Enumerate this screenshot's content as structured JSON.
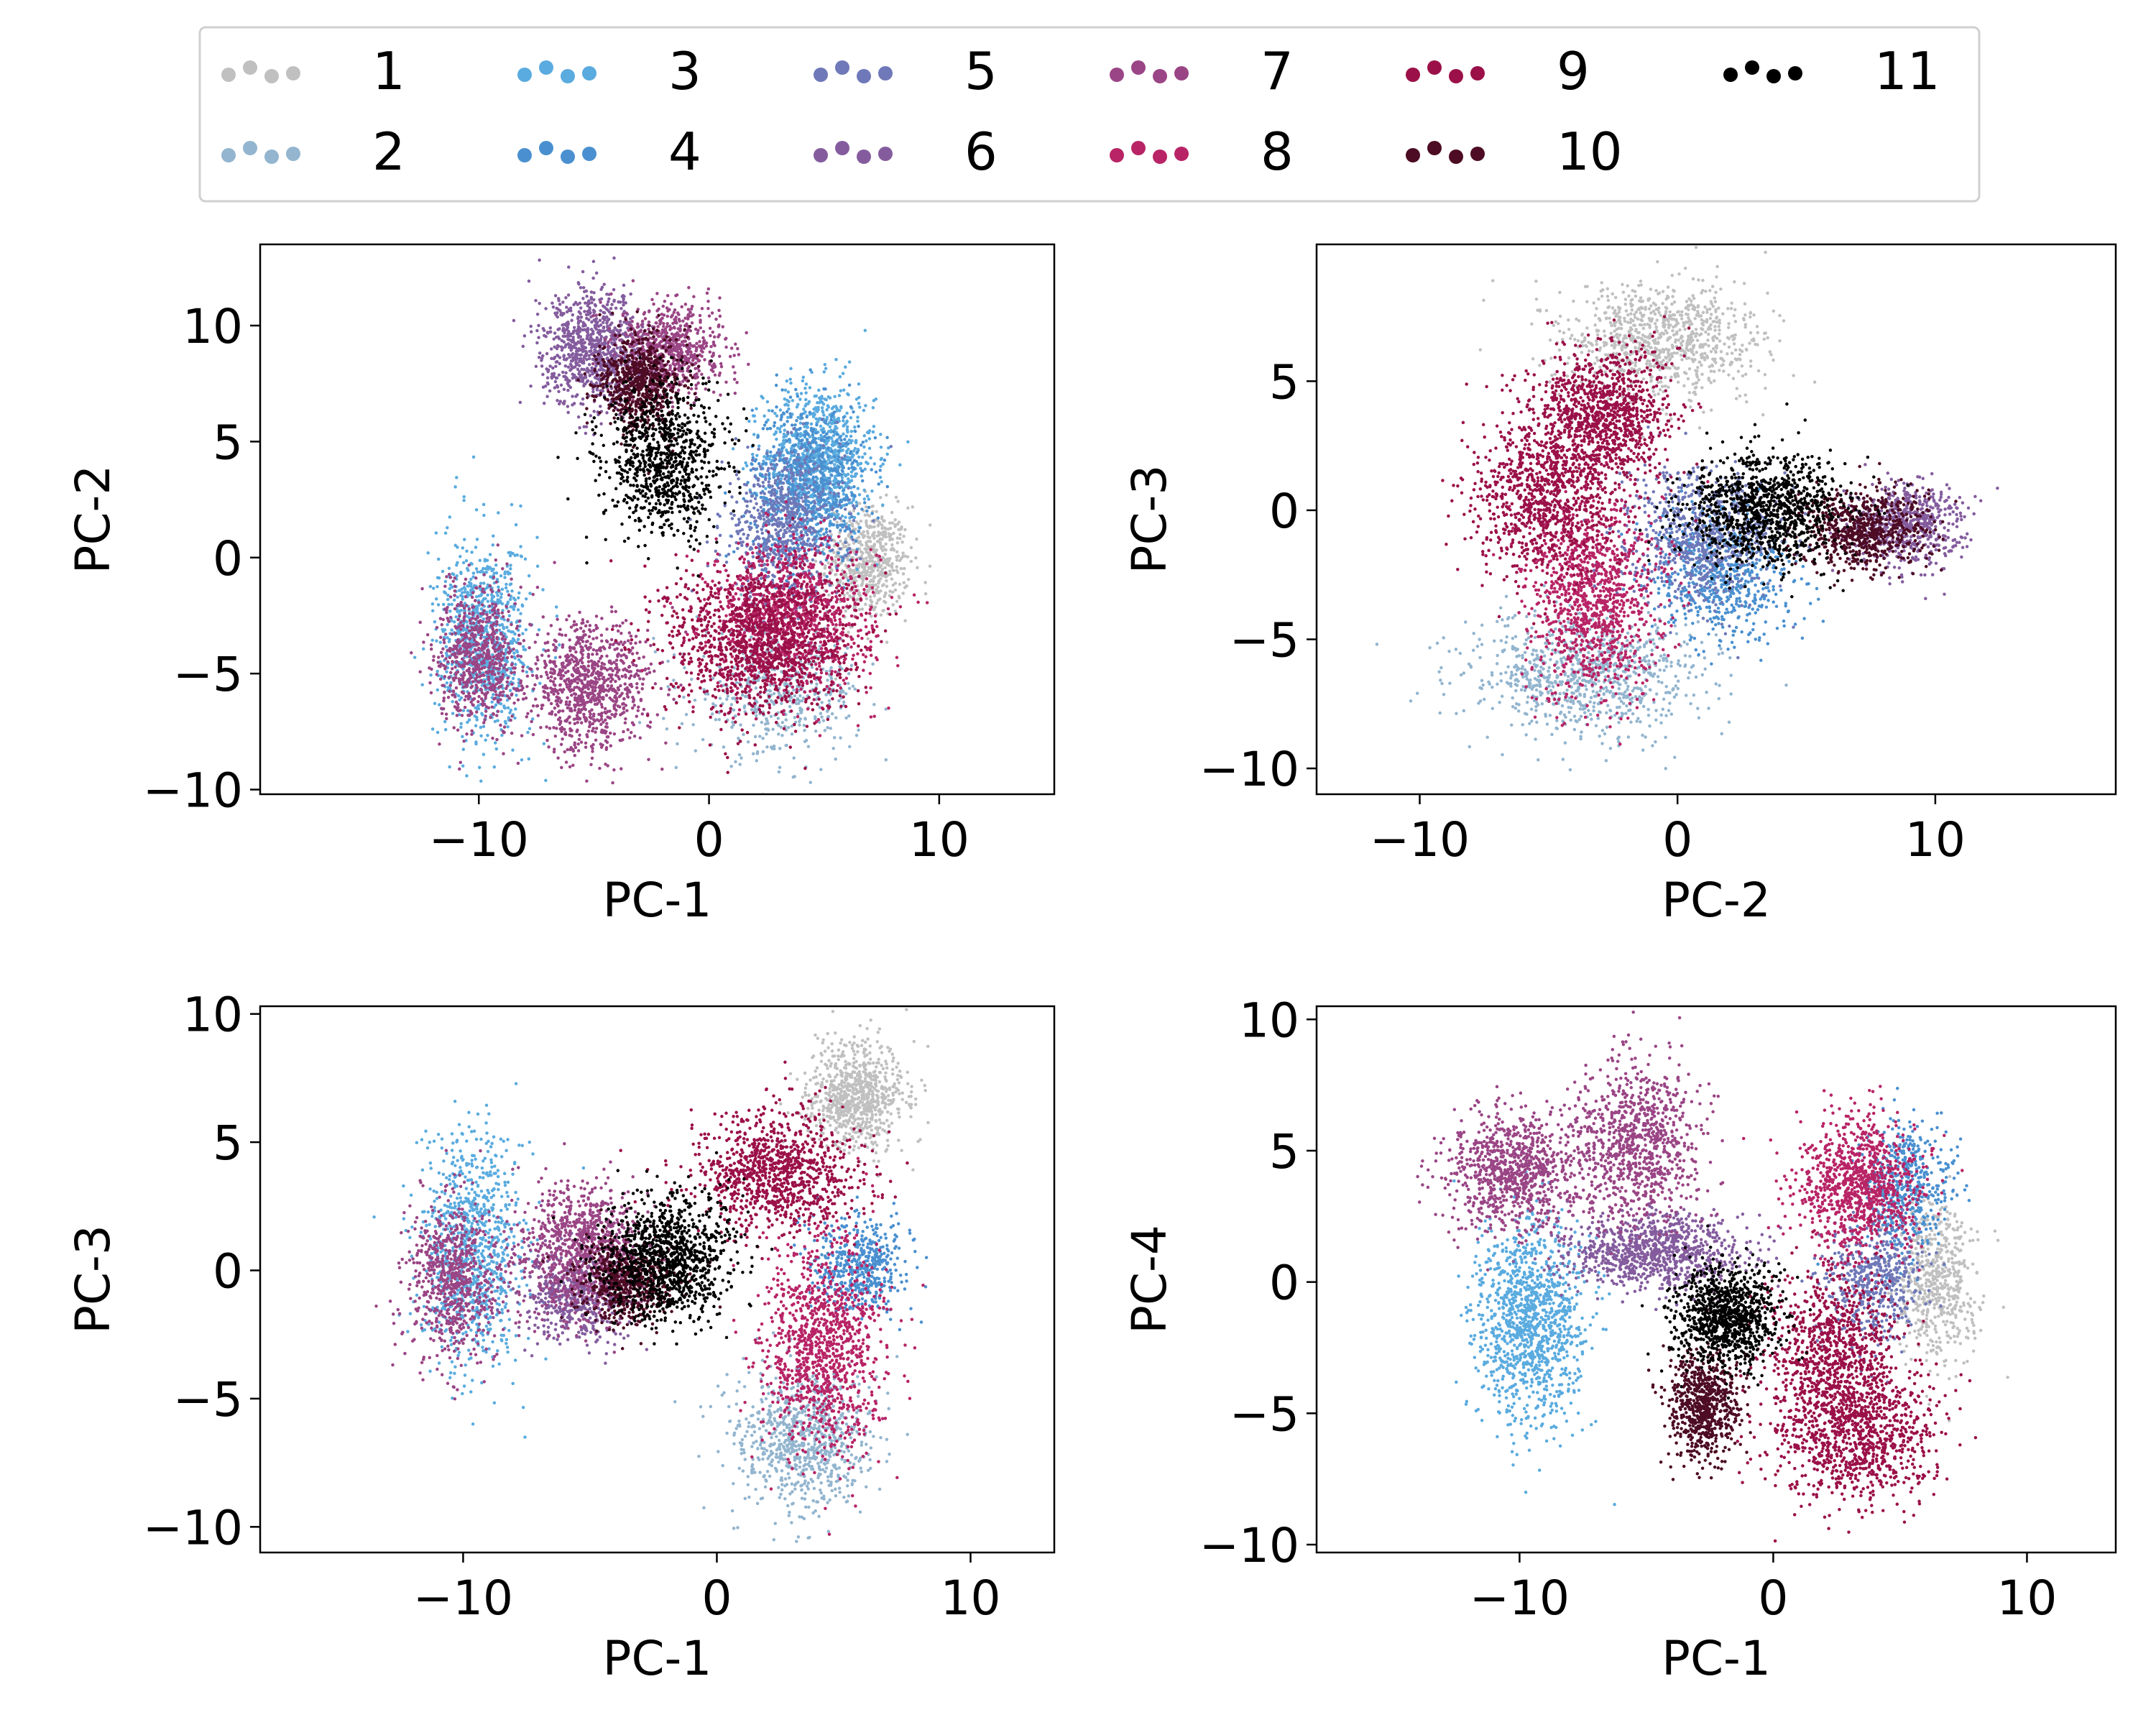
{
  "legend": {
    "placement": "top-center",
    "ncol": 6,
    "items": [
      {
        "label": "1",
        "color": "#c0c0c0"
      },
      {
        "label": "2",
        "color": "#93b5cf"
      },
      {
        "label": "3",
        "color": "#5aabdf"
      },
      {
        "label": "4",
        "color": "#4a90d0"
      },
      {
        "label": "5",
        "color": "#6f78b8"
      },
      {
        "label": "6",
        "color": "#845c9e"
      },
      {
        "label": "7",
        "color": "#9a4585"
      },
      {
        "label": "8",
        "color": "#b82466"
      },
      {
        "label": "9",
        "color": "#9b1048"
      },
      {
        "label": "10",
        "color": "#4d0b24"
      },
      {
        "label": "11",
        "color": "#000000"
      }
    ]
  },
  "chart_data": [
    {
      "type": "scatter",
      "id": "pc1-pc2",
      "xlabel": "PC-1",
      "ylabel": "PC-2",
      "xlim": [
        -19.5,
        15
      ],
      "ylim": [
        -10.2,
        13.5
      ],
      "xticks": [
        -10,
        0,
        10
      ],
      "yticks": [
        -10,
        -5,
        0,
        5,
        10
      ],
      "grid": false,
      "clusters": [
        {
          "series": "1",
          "cx": 6.9,
          "cy": -0.2,
          "sx": 0.9,
          "sy": 1.2,
          "n": 600
        },
        {
          "series": "3",
          "cx": 4.8,
          "cy": 4.3,
          "sx": 1.2,
          "sy": 1.6,
          "n": 900
        },
        {
          "series": "4",
          "cx": 4.3,
          "cy": 3.2,
          "sx": 1.2,
          "sy": 1.7,
          "n": 700
        },
        {
          "series": "5",
          "cx": 3.2,
          "cy": 1.3,
          "sx": 1.3,
          "sy": 1.6,
          "n": 700
        },
        {
          "series": "2",
          "cx": 3.0,
          "cy": -5.8,
          "sx": 1.8,
          "sy": 1.4,
          "n": 500
        },
        {
          "series": "8",
          "cx": 3.6,
          "cy": -2.5,
          "sx": 1.8,
          "sy": 1.6,
          "n": 1100
        },
        {
          "series": "9",
          "cx": 2.2,
          "cy": -3.6,
          "sx": 2.0,
          "sy": 1.6,
          "n": 1300
        },
        {
          "series": "3",
          "cx": -9.8,
          "cy": -3.6,
          "sx": 1.0,
          "sy": 2.1,
          "n": 900
        },
        {
          "series": "7",
          "cx": -10.0,
          "cy": -4.2,
          "sx": 0.9,
          "sy": 1.5,
          "n": 700
        },
        {
          "series": "7",
          "cx": -5.2,
          "cy": -5.6,
          "sx": 1.3,
          "sy": 1.4,
          "n": 900
        },
        {
          "series": "6",
          "cx": -5.0,
          "cy": 9.0,
          "sx": 1.1,
          "sy": 1.2,
          "n": 900
        },
        {
          "series": "7",
          "cx": -1.6,
          "cy": 9.0,
          "sx": 1.1,
          "sy": 1.0,
          "n": 700
        },
        {
          "series": "10",
          "cx": -3.0,
          "cy": 7.6,
          "sx": 0.9,
          "sy": 1.0,
          "n": 700
        },
        {
          "series": "11",
          "cx": -2.0,
          "cy": 4.2,
          "sx": 1.3,
          "sy": 1.6,
          "n": 900
        }
      ]
    },
    {
      "type": "scatter",
      "id": "pc2-pc3",
      "xlabel": "PC-2",
      "ylabel": "PC-3",
      "xlim": [
        -14,
        17
      ],
      "ylim": [
        -11,
        10.3
      ],
      "xticks": [
        -10,
        0,
        10
      ],
      "yticks": [
        -10,
        -5,
        0,
        5
      ],
      "grid": false,
      "clusters": [
        {
          "series": "1",
          "cx": -0.6,
          "cy": 6.6,
          "sx": 1.9,
          "sy": 1.1,
          "n": 900
        },
        {
          "series": "2",
          "cx": -3.5,
          "cy": -6.4,
          "sx": 2.3,
          "sy": 1.2,
          "n": 900
        },
        {
          "series": "4",
          "cx": 1.8,
          "cy": -2.6,
          "sx": 1.4,
          "sy": 1.2,
          "n": 600
        },
        {
          "series": "5",
          "cx": 0.8,
          "cy": -1.0,
          "sx": 1.5,
          "sy": 1.3,
          "n": 700
        },
        {
          "series": "8",
          "cx": -3.2,
          "cy": -3.4,
          "sx": 1.3,
          "sy": 1.9,
          "n": 1100
        },
        {
          "series": "9",
          "cx": -5.2,
          "cy": 0.6,
          "sx": 1.4,
          "sy": 1.6,
          "n": 1000
        },
        {
          "series": "9",
          "cx": -2.8,
          "cy": 3.8,
          "sx": 1.3,
          "sy": 1.3,
          "n": 1000
        },
        {
          "series": "6",
          "cx": 8.8,
          "cy": -0.6,
          "sx": 1.1,
          "sy": 0.8,
          "n": 600
        },
        {
          "series": "10",
          "cx": 7.2,
          "cy": -0.8,
          "sx": 1.2,
          "sy": 0.8,
          "n": 700
        },
        {
          "series": "11",
          "cx": 3.4,
          "cy": 0.0,
          "sx": 1.5,
          "sy": 1.1,
          "n": 1100
        }
      ]
    },
    {
      "type": "scatter",
      "id": "pc1-pc3",
      "xlabel": "PC-1",
      "ylabel": "PC-3",
      "xlim": [
        -18,
        13.3
      ],
      "ylim": [
        -11,
        10.3
      ],
      "xticks": [
        -10,
        0,
        10
      ],
      "yticks": [
        -10,
        -5,
        0,
        5,
        10
      ],
      "grid": false,
      "clusters": [
        {
          "series": "1",
          "cx": 5.5,
          "cy": 6.8,
          "sx": 1.0,
          "sy": 1.0,
          "n": 800
        },
        {
          "series": "2",
          "cx": 3.4,
          "cy": -6.6,
          "sx": 1.3,
          "sy": 1.3,
          "n": 800
        },
        {
          "series": "4",
          "cx": 5.6,
          "cy": 0.2,
          "sx": 0.9,
          "sy": 0.9,
          "n": 500
        },
        {
          "series": "8",
          "cx": 4.2,
          "cy": -3.0,
          "sx": 1.2,
          "sy": 2.1,
          "n": 1100
        },
        {
          "series": "9",
          "cx": 2.4,
          "cy": 3.8,
          "sx": 1.5,
          "sy": 1.2,
          "n": 1000
        },
        {
          "series": "3",
          "cx": -9.6,
          "cy": 0.6,
          "sx": 1.0,
          "sy": 2.2,
          "n": 900
        },
        {
          "series": "7",
          "cx": -10.4,
          "cy": -0.4,
          "sx": 0.9,
          "sy": 1.6,
          "n": 700
        },
        {
          "series": "7",
          "cx": -5.4,
          "cy": 0.8,
          "sx": 1.2,
          "sy": 1.3,
          "n": 900
        },
        {
          "series": "6",
          "cx": -5.6,
          "cy": -1.0,
          "sx": 1.0,
          "sy": 0.9,
          "n": 500
        },
        {
          "series": "10",
          "cx": -3.6,
          "cy": -0.4,
          "sx": 0.9,
          "sy": 0.8,
          "n": 600
        },
        {
          "series": "11",
          "cx": -2.0,
          "cy": 0.4,
          "sx": 1.3,
          "sy": 1.2,
          "n": 1100
        }
      ]
    },
    {
      "type": "scatter",
      "id": "pc1-pc4",
      "xlabel": "PC-1",
      "ylabel": "PC-4",
      "xlim": [
        -18,
        13.5
      ],
      "ylim": [
        -10.3,
        10.5
      ],
      "xticks": [
        -10,
        0,
        10
      ],
      "yticks": [
        -10,
        -5,
        0,
        5,
        10
      ],
      "grid": false,
      "clusters": [
        {
          "series": "7",
          "cx": -10.2,
          "cy": 4.2,
          "sx": 1.3,
          "sy": 1.1,
          "n": 900
        },
        {
          "series": "7",
          "cx": -5.4,
          "cy": 5.4,
          "sx": 1.2,
          "sy": 1.5,
          "n": 900
        },
        {
          "series": "6",
          "cx": -4.6,
          "cy": 1.2,
          "sx": 1.7,
          "sy": 0.7,
          "n": 900
        },
        {
          "series": "3",
          "cx": -9.6,
          "cy": -1.6,
          "sx": 1.1,
          "sy": 1.9,
          "n": 1200
        },
        {
          "series": "11",
          "cx": -1.8,
          "cy": -1.4,
          "sx": 1.0,
          "sy": 0.9,
          "n": 1000
        },
        {
          "series": "10",
          "cx": -2.8,
          "cy": -4.7,
          "sx": 0.7,
          "sy": 1.0,
          "n": 700
        },
        {
          "series": "1",
          "cx": 6.4,
          "cy": 0.0,
          "sx": 0.8,
          "sy": 1.6,
          "n": 600
        },
        {
          "series": "4",
          "cx": 5.2,
          "cy": 3.6,
          "sx": 0.9,
          "sy": 1.2,
          "n": 500
        },
        {
          "series": "5",
          "cx": 4.0,
          "cy": 0.0,
          "sx": 1.0,
          "sy": 1.2,
          "n": 500
        },
        {
          "series": "8",
          "cx": 3.4,
          "cy": 3.6,
          "sx": 1.2,
          "sy": 1.3,
          "n": 1000
        },
        {
          "series": "9",
          "cx": 3.2,
          "cy": -5.8,
          "sx": 1.6,
          "sy": 1.3,
          "n": 1000
        },
        {
          "series": "9",
          "cx": 2.4,
          "cy": -2.6,
          "sx": 1.2,
          "sy": 1.5,
          "n": 800
        }
      ]
    }
  ]
}
